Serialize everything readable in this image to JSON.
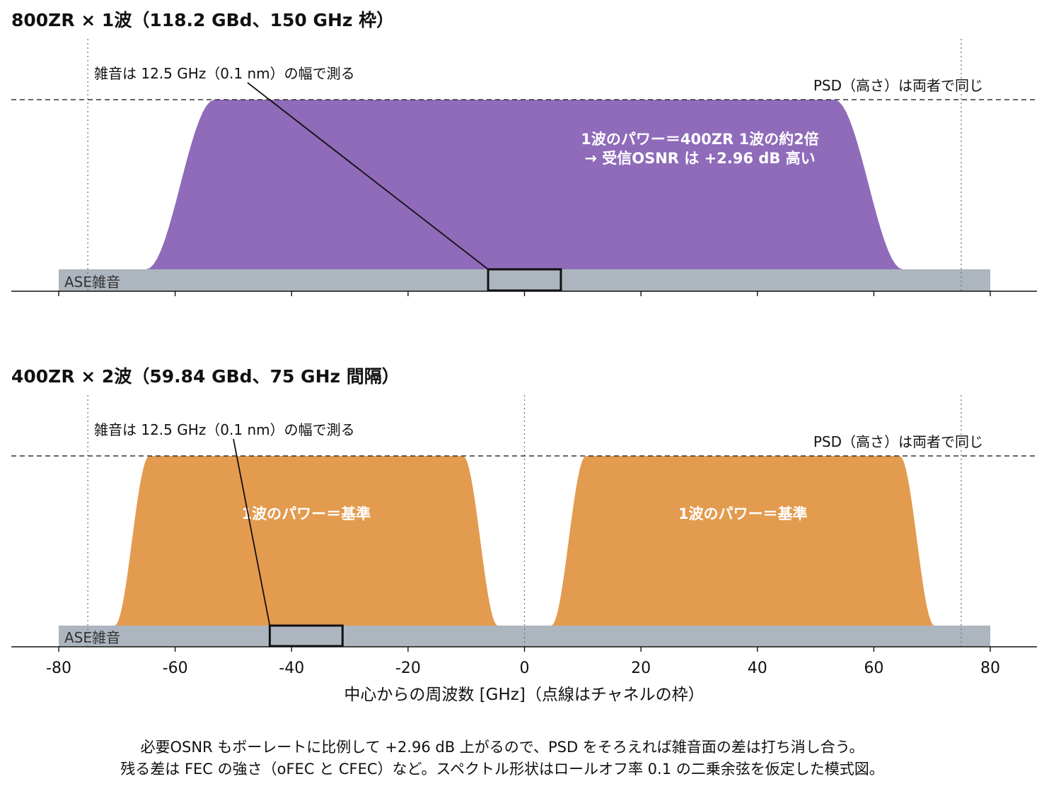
{
  "chart_data": [
    {
      "type": "area",
      "title": "800ZR × 1波（118.2 GBd、150 GHz 枠）",
      "channel_frame_lines": [
        -75,
        75
      ],
      "carriers": [
        {
          "center": 0,
          "symbol_rate_gbd": 118.2,
          "rolloff": 0.1,
          "color": "#8f6bba",
          "label": [
            "1波のパワー＝400ZR 1波の約2倍",
            "→ 受信OSNR は +2.96 dB 高い"
          ]
        }
      ],
      "noise_band": {
        "label": "ASE雑音",
        "range": [
          -80,
          80
        ],
        "color": "#adb5bf"
      },
      "measure_box": {
        "range": [
          -6.25,
          6.25
        ]
      },
      "annotation": "雑音は 12.5 GHz（0.1 nm）の幅で測る",
      "psd_line_label": "PSD（高さ）は両者で同じ"
    },
    {
      "type": "area",
      "title": "400ZR × 2波（59.84 GBd、75 GHz 間隔）",
      "channel_frame_lines": [
        -75,
        0,
        75
      ],
      "carriers": [
        {
          "center": -37.5,
          "symbol_rate_gbd": 59.84,
          "rolloff": 0.1,
          "color": "#e39b4f",
          "label": [
            "1波のパワー＝基準"
          ]
        },
        {
          "center": 37.5,
          "symbol_rate_gbd": 59.84,
          "rolloff": 0.1,
          "color": "#e39b4f",
          "label": [
            "1波のパワー＝基準"
          ]
        }
      ],
      "noise_band": {
        "label": "ASE雑音",
        "range": [
          -80,
          80
        ],
        "color": "#adb5bf"
      },
      "measure_box": {
        "range": [
          -43.75,
          -31.25
        ]
      },
      "annotation": "雑音は 12.5 GHz（0.1 nm）の幅で測る",
      "psd_line_label": "PSD（高さ）は両者で同じ"
    }
  ],
  "x_axis": {
    "ticks": [
      -80,
      -60,
      -40,
      -20,
      0,
      20,
      40,
      60,
      80
    ],
    "tick_labels": [
      "-80",
      "-60",
      "-40",
      "-20",
      "0",
      "20",
      "40",
      "60",
      "80"
    ],
    "xlim": [
      -80,
      80
    ],
    "label": "中心からの周波数 [GHz]（点線はチャネルの枠）"
  },
  "caption": [
    "必要OSNR もボーレートに比例して +2.96 dB 上がるので、PSD をそろえれば雑音面の差は打ち消し合う。",
    "残る差は FEC の強さ（oFEC と CFEC）など。スペクトル形状はロールオフ率 0.1 の二乗余弦を仮定した模式図。"
  ]
}
